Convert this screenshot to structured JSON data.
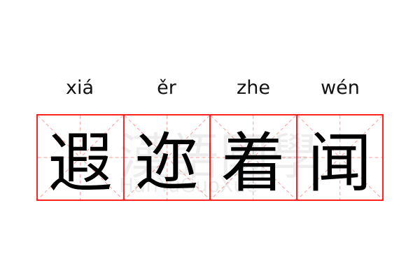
{
  "pinyin": [
    "xiá",
    "ěr",
    "zhe",
    "wén"
  ],
  "characters": [
    "遐",
    "迩",
    "着",
    "闻"
  ],
  "watermark": {
    "text": "漢語國學",
    "latin": "HanYuGuoXue"
  },
  "colors": {
    "grid": "#ff2222",
    "guide": "#ff9999"
  }
}
